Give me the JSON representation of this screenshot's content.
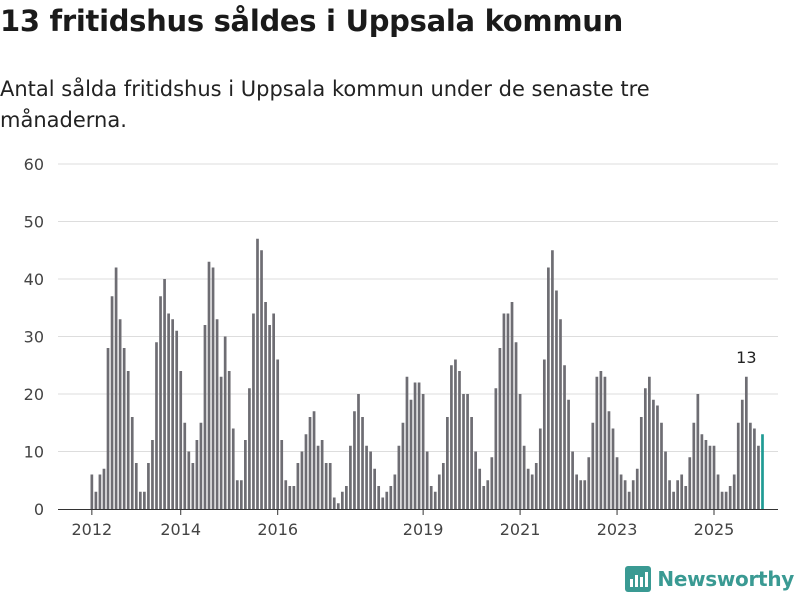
{
  "header": {
    "title": "13 fritidshus såldes i Uppsala kommun",
    "subtitle": "Antal sålda fritidshus i Uppsala kommun under de senaste tre månaderna."
  },
  "brand": {
    "name": "Newsworthy",
    "color": "#3a9a93"
  },
  "colors": {
    "bar": "#6e6d73",
    "highlight": "#1f9b94",
    "grid": "#dddddd",
    "axis": "#444444"
  },
  "chart_data": {
    "type": "bar",
    "title": "13 fritidshus såldes i Uppsala kommun",
    "xlabel": "",
    "ylabel": "",
    "ylim": [
      0,
      60
    ],
    "yticks": [
      0,
      10,
      20,
      30,
      40,
      50,
      60
    ],
    "xticks": [
      {
        "label": "2012",
        "index": 0
      },
      {
        "label": "2014",
        "index": 22
      },
      {
        "label": "2016",
        "index": 46
      },
      {
        "label": "2019",
        "index": 82
      },
      {
        "label": "2021",
        "index": 106
      },
      {
        "label": "2023",
        "index": 130
      },
      {
        "label": "2025",
        "index": 154
      }
    ],
    "annotation": {
      "label": "13",
      "index": 162
    },
    "values": [
      6,
      3,
      6,
      7,
      28,
      37,
      42,
      33,
      28,
      24,
      16,
      8,
      3,
      3,
      8,
      12,
      29,
      37,
      40,
      34,
      33,
      31,
      24,
      15,
      10,
      8,
      12,
      15,
      32,
      43,
      42,
      33,
      23,
      30,
      24,
      14,
      5,
      5,
      12,
      21,
      34,
      47,
      45,
      36,
      32,
      34,
      26,
      12,
      5,
      4,
      4,
      8,
      10,
      13,
      16,
      17,
      11,
      12,
      8,
      8,
      2,
      1,
      3,
      4,
      11,
      17,
      20,
      16,
      11,
      10,
      7,
      4,
      2,
      3,
      4,
      6,
      11,
      15,
      23,
      19,
      22,
      22,
      20,
      10,
      4,
      3,
      6,
      8,
      16,
      25,
      26,
      24,
      20,
      20,
      16,
      10,
      7,
      4,
      5,
      9,
      21,
      28,
      34,
      34,
      36,
      29,
      20,
      11,
      7,
      6,
      8,
      14,
      26,
      42,
      45,
      38,
      33,
      25,
      19,
      10,
      6,
      5,
      5,
      9,
      15,
      23,
      24,
      23,
      17,
      14,
      9,
      6,
      5,
      3,
      5,
      7,
      16,
      21,
      23,
      19,
      18,
      15,
      10,
      5,
      3,
      5,
      6,
      4,
      9,
      15,
      20,
      13,
      12,
      11,
      11,
      6,
      3,
      3,
      4,
      6,
      15,
      19,
      23,
      15,
      14,
      11,
      13
    ]
  }
}
